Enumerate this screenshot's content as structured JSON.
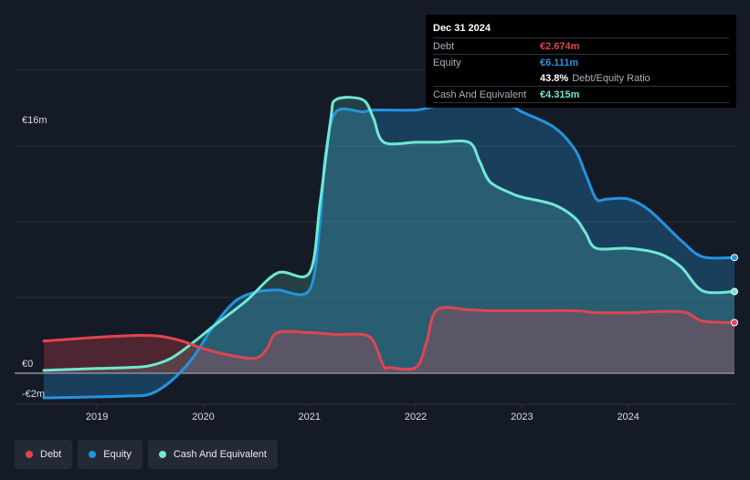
{
  "colors": {
    "debt": "#e0454f",
    "equity": "#2394df",
    "cash": "#6fe8d3",
    "grid": "#2a303b",
    "axis_text": "#d8dde6"
  },
  "tooltip": {
    "date": "Dec 31 2024",
    "debt_label": "Debt",
    "debt_value": "€2.674m",
    "equity_label": "Equity",
    "equity_value": "€6.111m",
    "ratio_value": "43.8%",
    "ratio_label": "Debt/Equity Ratio",
    "cash_label": "Cash And Equivalent",
    "cash_value": "€4.315m"
  },
  "legend": [
    {
      "label": "Debt",
      "color": "#e0454f"
    },
    {
      "label": "Equity",
      "color": "#2394df"
    },
    {
      "label": "Cash And Equivalent",
      "color": "#6fe8d3"
    }
  ],
  "chart_data": {
    "type": "area",
    "y_tick_labels": [
      {
        "value": 16,
        "label": "€16m"
      },
      {
        "value": 0,
        "label": "€0"
      },
      {
        "value": -2,
        "label": "-€2m"
      }
    ],
    "x_ticks": [
      2019,
      2020,
      2021,
      2022,
      2023,
      2024
    ],
    "xlim": [
      2018.5,
      2025.0
    ],
    "ylim": [
      -2,
      16
    ],
    "series": [
      {
        "name": "Debt",
        "key": "debt",
        "points": [
          [
            2018.5,
            1.7
          ],
          [
            2019.0,
            1.9
          ],
          [
            2019.4,
            2.0
          ],
          [
            2019.6,
            1.95
          ],
          [
            2019.8,
            1.7
          ],
          [
            2020.0,
            1.3
          ],
          [
            2020.3,
            0.9
          ],
          [
            2020.5,
            0.8
          ],
          [
            2020.6,
            1.3
          ],
          [
            2020.7,
            2.15
          ],
          [
            2021.0,
            2.15
          ],
          [
            2021.25,
            2.05
          ],
          [
            2021.5,
            2.05
          ],
          [
            2021.6,
            1.7
          ],
          [
            2021.7,
            0.35
          ],
          [
            2021.75,
            0.3
          ],
          [
            2022.0,
            0.3
          ],
          [
            2022.1,
            1.6
          ],
          [
            2022.2,
            3.35
          ],
          [
            2022.5,
            3.35
          ],
          [
            2022.7,
            3.3
          ],
          [
            2023.0,
            3.3
          ],
          [
            2023.5,
            3.3
          ],
          [
            2023.7,
            3.2
          ],
          [
            2024.0,
            3.2
          ],
          [
            2024.5,
            3.25
          ],
          [
            2024.7,
            2.75
          ],
          [
            2025.0,
            2.674
          ]
        ]
      },
      {
        "name": "Equity",
        "key": "equity",
        "points": [
          [
            2018.5,
            -1.3
          ],
          [
            2019.0,
            -1.25
          ],
          [
            2019.3,
            -1.2
          ],
          [
            2019.5,
            -1.1
          ],
          [
            2019.7,
            -0.4
          ],
          [
            2019.9,
            0.8
          ],
          [
            2020.1,
            2.5
          ],
          [
            2020.3,
            3.8
          ],
          [
            2020.5,
            4.3
          ],
          [
            2020.7,
            4.4
          ],
          [
            2021.0,
            4.4
          ],
          [
            2021.1,
            8.0
          ],
          [
            2021.15,
            11.5
          ],
          [
            2021.25,
            13.8
          ],
          [
            2021.5,
            13.8
          ],
          [
            2021.6,
            13.9
          ],
          [
            2022.0,
            13.9
          ],
          [
            2022.2,
            14.1
          ],
          [
            2022.5,
            14.1
          ],
          [
            2022.7,
            14.2
          ],
          [
            2022.9,
            14.1
          ],
          [
            2023.0,
            13.8
          ],
          [
            2023.3,
            13.0
          ],
          [
            2023.5,
            11.8
          ],
          [
            2023.6,
            10.5
          ],
          [
            2023.7,
            9.2
          ],
          [
            2023.8,
            9.2
          ],
          [
            2024.0,
            9.2
          ],
          [
            2024.2,
            8.6
          ],
          [
            2024.5,
            7.0
          ],
          [
            2024.7,
            6.15
          ],
          [
            2025.0,
            6.111
          ]
        ]
      },
      {
        "name": "Cash And Equivalent",
        "key": "cash",
        "points": [
          [
            2018.5,
            0.15
          ],
          [
            2019.0,
            0.25
          ],
          [
            2019.3,
            0.3
          ],
          [
            2019.5,
            0.4
          ],
          [
            2019.7,
            0.8
          ],
          [
            2019.9,
            1.6
          ],
          [
            2020.1,
            2.5
          ],
          [
            2020.4,
            3.8
          ],
          [
            2020.7,
            5.3
          ],
          [
            2021.0,
            5.3
          ],
          [
            2021.1,
            9.0
          ],
          [
            2021.2,
            13.4
          ],
          [
            2021.25,
            14.45
          ],
          [
            2021.5,
            14.45
          ],
          [
            2021.6,
            13.5
          ],
          [
            2021.7,
            12.2
          ],
          [
            2022.0,
            12.2
          ],
          [
            2022.2,
            12.2
          ],
          [
            2022.5,
            12.2
          ],
          [
            2022.6,
            11.2
          ],
          [
            2022.7,
            10.1
          ],
          [
            2022.9,
            9.5
          ],
          [
            2023.0,
            9.3
          ],
          [
            2023.3,
            8.9
          ],
          [
            2023.5,
            8.2
          ],
          [
            2023.6,
            7.4
          ],
          [
            2023.7,
            6.6
          ],
          [
            2024.0,
            6.6
          ],
          [
            2024.3,
            6.3
          ],
          [
            2024.5,
            5.6
          ],
          [
            2024.7,
            4.35
          ],
          [
            2025.0,
            4.315
          ]
        ]
      }
    ]
  }
}
